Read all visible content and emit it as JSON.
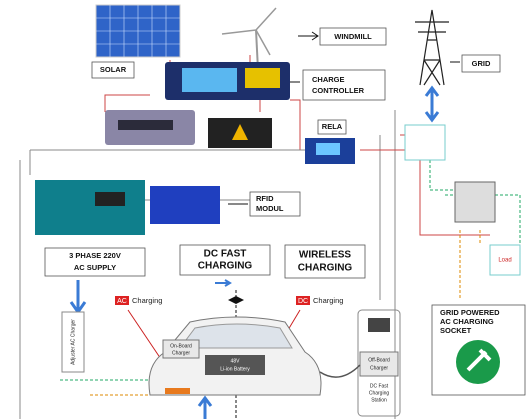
{
  "labels": {
    "solar": "SOLAR",
    "windmill": "WINDMILL",
    "charge_controller": [
      "CHARGE",
      "CONTROLLER"
    ],
    "grid": "GRID",
    "relay": "RELA",
    "rfid": [
      "RFID",
      "MODUL"
    ],
    "ac_supply": [
      "3 PHASE 220V",
      "AC SUPPLY"
    ],
    "dc_fast": [
      "DC FAST",
      "CHARGING"
    ],
    "wireless": [
      "WIRELESS",
      "CHARGING"
    ],
    "grid_socket": [
      "GRID POWERED",
      "AC CHARGING",
      "SOCKET"
    ],
    "ac_charging": {
      "tag": "AC",
      "text": "Charging"
    },
    "dc_charging": {
      "tag": "DC",
      "text": "Charging"
    },
    "onboard_charger": [
      "On-Board",
      "Charger"
    ],
    "battery": [
      "48V",
      "Li-ion Battery"
    ],
    "offboard_charger": [
      "Off-Board",
      "Charger"
    ],
    "station": [
      "DC Fast",
      "Charging",
      "Station"
    ],
    "adjuster": "Adjuster AC Charger",
    "load": "Load"
  }
}
